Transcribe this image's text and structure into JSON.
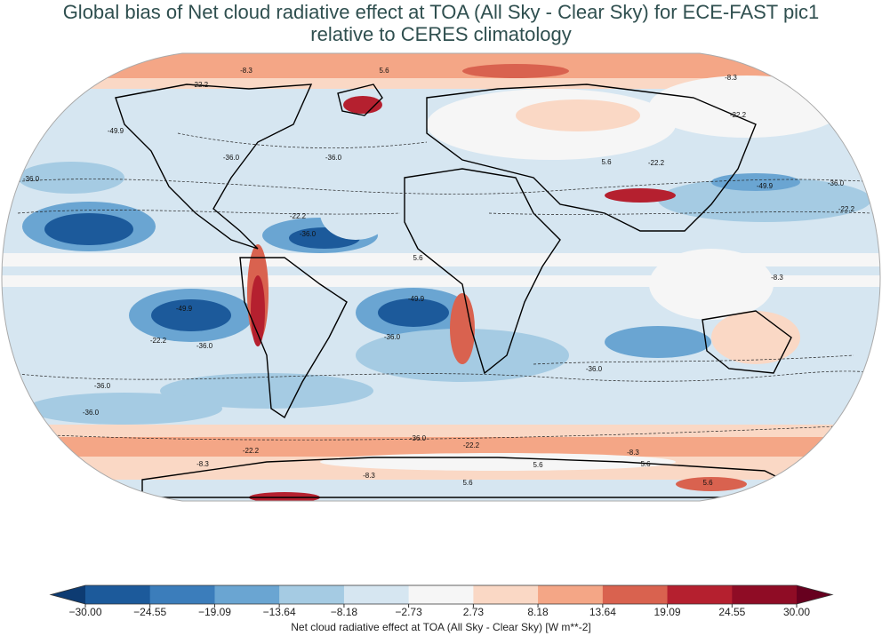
{
  "title": [
    "Global bias of Net cloud radiative effect at TOA (All Sky - Clear Sky) for ECE-FAST pic1",
    "relative to CERES climatology"
  ],
  "map": {
    "contour_labels": [
      {
        "value": -49.9,
        "label": "-49.9"
      },
      {
        "value": -36.0,
        "label": "-36.0"
      },
      {
        "value": -22.2,
        "label": "-22.2"
      },
      {
        "value": -8.3,
        "label": "-8.3"
      },
      {
        "value": 5.6,
        "label": "5.6"
      }
    ]
  },
  "colorbar": {
    "label": "Net cloud radiative effect at TOA (All Sky - Clear Sky) [W m**-2]",
    "lim": [
      -30,
      30
    ],
    "ticks": [
      {
        "value": -30,
        "label": "−30.00"
      },
      {
        "value": -24.55,
        "label": "−24.55"
      },
      {
        "value": -19.09,
        "label": "−19.09"
      },
      {
        "value": -13.64,
        "label": "−13.64"
      },
      {
        "value": -8.18,
        "label": "−8.18"
      },
      {
        "value": -2.73,
        "label": "−2.73"
      },
      {
        "value": 2.73,
        "label": "2.73"
      },
      {
        "value": 8.18,
        "label": "8.18"
      },
      {
        "value": 13.64,
        "label": "13.64"
      },
      {
        "value": 19.09,
        "label": "19.09"
      },
      {
        "value": 24.55,
        "label": "24.55"
      },
      {
        "value": 30,
        "label": "30.00"
      }
    ],
    "colors": [
      "#1c5a9b",
      "#3b7dbb",
      "#6aa5d2",
      "#a5cbe3",
      "#d6e6f1",
      "#f6f6f6",
      "#fad8c5",
      "#f4a686",
      "#d9624f",
      "#b5202f",
      "#8f0c25"
    ],
    "extend_colors": [
      "#0d3b72",
      "#67001f"
    ]
  }
}
